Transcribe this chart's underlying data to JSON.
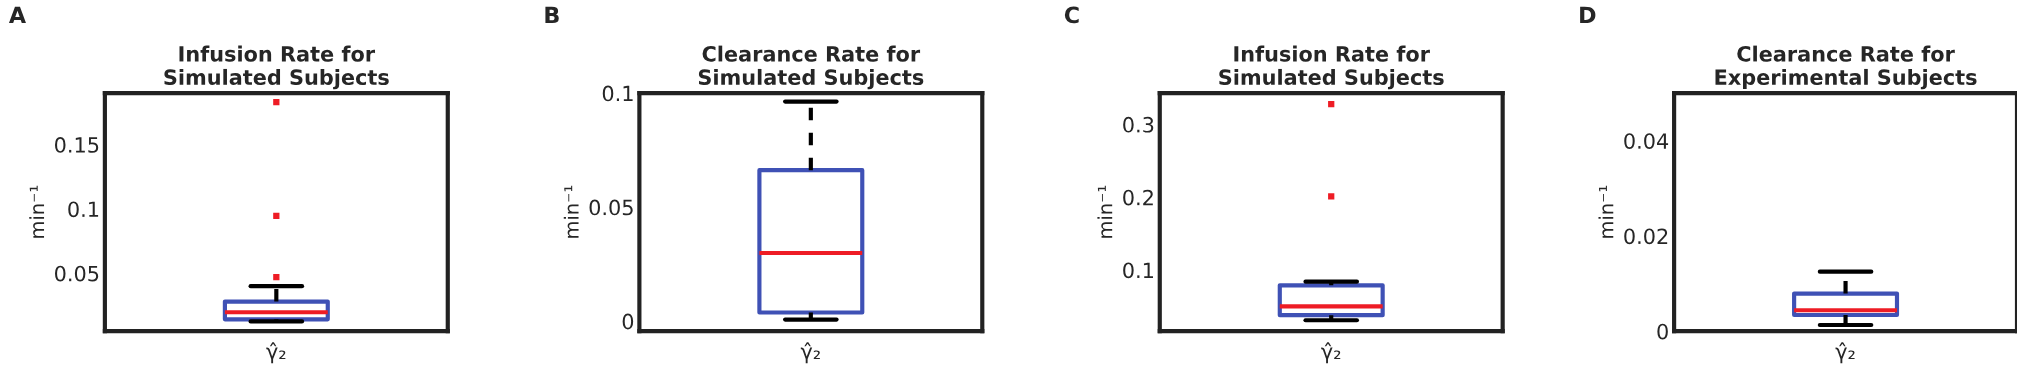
{
  "chart_data": [
    {
      "type": "box",
      "title": "Infusion Rate for\nSimulated Subjects",
      "ylabel": "min⁻¹",
      "categories": [
        "γ̂₂"
      ],
      "annotations": [
        "A"
      ],
      "ylim": [
        0.005,
        0.19
      ],
      "yticks": [
        0.05,
        0.1,
        0.15
      ],
      "series": [
        {
          "color": "#3f51b5",
          "boxes": [
            {
              "low": 0.0126,
              "q1": 0.0142,
              "median": 0.0197,
              "q3": 0.028,
              "high": 0.04,
              "outliers": [
                0.047,
                0.0947,
                0.183
              ]
            }
          ]
        }
      ]
    },
    {
      "type": "box",
      "title": "Clearance Rate for\nSimulated Subjects",
      "ylabel": "min⁻¹",
      "categories": [
        "γ̂₂"
      ],
      "annotations": [
        "B"
      ],
      "ylim": [
        -0.0044,
        0.1
      ],
      "yticks": [
        0,
        0.05,
        0.1
      ],
      "series": [
        {
          "color": "#3f51b5",
          "boxes": [
            {
              "low": 0.0007,
              "q1": 0.0038,
              "median": 0.0299,
              "q3": 0.0662,
              "high": 0.0963
            }
          ]
        }
      ]
    },
    {
      "type": "box",
      "title": "Infusion Rate for\nSimulated Subjects",
      "ylabel": "min⁻¹",
      "categories": [
        "γ̂₂"
      ],
      "annotations": [
        "C"
      ],
      "ylim": [
        0.016,
        0.343
      ],
      "yticks": [
        0.1,
        0.2,
        0.3
      ],
      "series": [
        {
          "color": "#3f51b5",
          "boxes": [
            {
              "low": 0.031,
              "q1": 0.038,
              "median": 0.05,
              "q3": 0.079,
              "high": 0.084,
              "outliers": [
                0.201,
                0.328
              ]
            }
          ]
        }
      ]
    },
    {
      "type": "box",
      "title": "Clearance Rate for\nExperimental Subjects",
      "ylabel": "min⁻¹",
      "categories": [
        "γ̂₂"
      ],
      "annotations": [
        "D"
      ],
      "ylim": [
        0,
        0.05
      ],
      "yticks": [
        0,
        0.02,
        0.04
      ],
      "series": [
        {
          "color": "#3f51b5",
          "boxes": [
            {
              "low": 0.0013,
              "q1": 0.0034,
              "median": 0.0044,
              "q3": 0.0079,
              "high": 0.0125
            }
          ]
        }
      ]
    }
  ]
}
